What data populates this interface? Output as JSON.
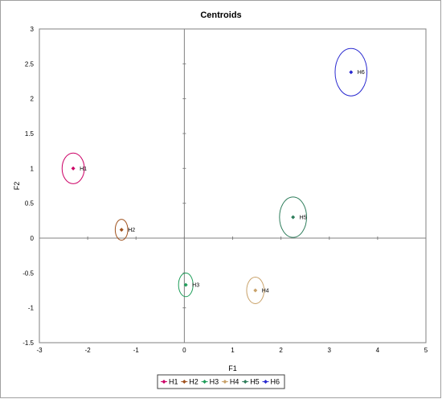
{
  "chart_data": {
    "type": "scatter",
    "title": "Centroids",
    "xlabel": "F1",
    "ylabel": "F2",
    "xlim": [
      -3,
      5
    ],
    "ylim": [
      -1.5,
      3
    ],
    "x_ticks": [
      -3,
      -2,
      -1,
      0,
      1,
      2,
      3,
      4,
      5
    ],
    "y_ticks": [
      -1.5,
      -1,
      -0.5,
      0,
      0.5,
      1,
      1.5,
      2,
      2.5,
      3
    ],
    "grid": false,
    "legend_position": "bottom",
    "series": [
      {
        "name": "H1",
        "x": -2.3,
        "y": 1.0,
        "color": "#cc0066",
        "ellipse_rx": 0.23,
        "ellipse_ry": 0.22
      },
      {
        "name": "H2",
        "x": -1.3,
        "y": 0.12,
        "color": "#a0521e",
        "ellipse_rx": 0.13,
        "ellipse_ry": 0.15
      },
      {
        "name": "H3",
        "x": 0.03,
        "y": -0.67,
        "color": "#1f9e5a",
        "ellipse_rx": 0.15,
        "ellipse_ry": 0.17
      },
      {
        "name": "H4",
        "x": 1.47,
        "y": -0.75,
        "color": "#c9a26a",
        "ellipse_rx": 0.18,
        "ellipse_ry": 0.19
      },
      {
        "name": "H5",
        "x": 2.25,
        "y": 0.3,
        "color": "#2e7d5b",
        "ellipse_rx": 0.28,
        "ellipse_ry": 0.29
      },
      {
        "name": "H6",
        "x": 3.45,
        "y": 2.38,
        "color": "#2a2ad0",
        "ellipse_rx": 0.33,
        "ellipse_ry": 0.34
      }
    ]
  }
}
